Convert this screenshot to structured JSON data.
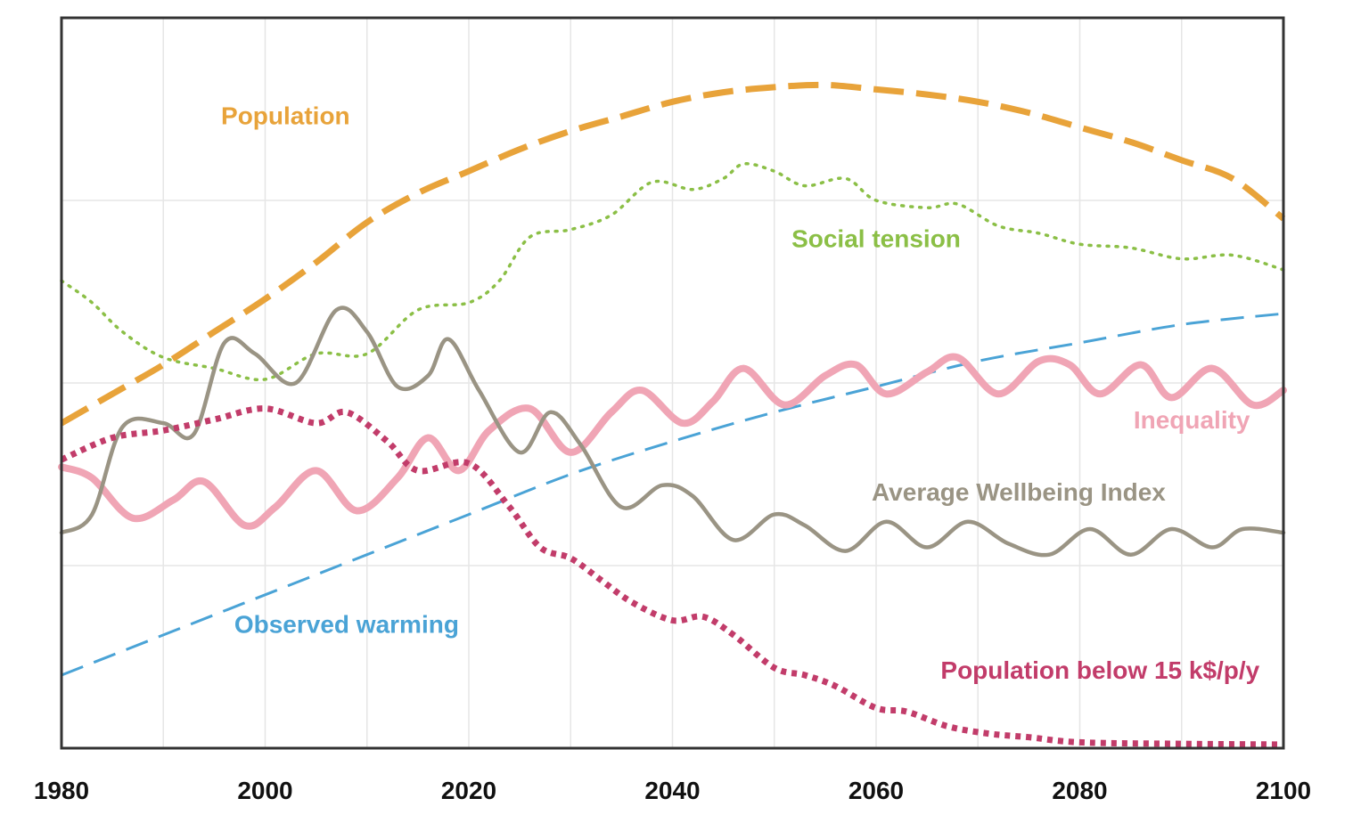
{
  "chart_data": {
    "type": "line",
    "title": "",
    "xlabel": "",
    "ylabel": "",
    "xlim": [
      1980,
      2100
    ],
    "ylim": [
      0,
      100
    ],
    "grid": true,
    "x_ticks": [
      {
        "value": 1980,
        "label": "1980"
      },
      {
        "value": 2000,
        "label": "2000"
      },
      {
        "value": 2020,
        "label": "2020"
      },
      {
        "value": 2040,
        "label": "2040"
      },
      {
        "value": 2060,
        "label": "2060"
      },
      {
        "value": 2080,
        "label": "2080"
      },
      {
        "value": 2100,
        "label": "2100"
      }
    ],
    "series": [
      {
        "name": "Population",
        "label": "Population",
        "color": "#e8a33a",
        "style": "long-dash",
        "label_at": [
          2002,
          85.4
        ],
        "points": [
          [
            1980,
            44.5
          ],
          [
            1985,
            48.5
          ],
          [
            1990,
            52.5
          ],
          [
            1995,
            57
          ],
          [
            2000,
            61.5
          ],
          [
            2005,
            66.5
          ],
          [
            2010,
            72
          ],
          [
            2015,
            76
          ],
          [
            2020,
            79
          ],
          [
            2025,
            82
          ],
          [
            2030,
            84.5
          ],
          [
            2035,
            86.5
          ],
          [
            2040,
            88.5
          ],
          [
            2045,
            89.8
          ],
          [
            2050,
            90.5
          ],
          [
            2055,
            90.8
          ],
          [
            2060,
            90.2
          ],
          [
            2065,
            89.5
          ],
          [
            2070,
            88.5
          ],
          [
            2075,
            87
          ],
          [
            2080,
            85
          ],
          [
            2085,
            83
          ],
          [
            2090,
            80.5
          ],
          [
            2095,
            78
          ],
          [
            2100,
            72.5
          ]
        ]
      },
      {
        "name": "Social tension",
        "label": "Social tension",
        "color": "#8bbf46",
        "style": "dotted",
        "label_at": [
          2060,
          68.6
        ],
        "points": [
          [
            1980,
            64
          ],
          [
            1983,
            61
          ],
          [
            1986,
            57
          ],
          [
            1990,
            53.5
          ],
          [
            1995,
            52
          ],
          [
            2000,
            50.5
          ],
          [
            2005,
            54
          ],
          [
            2010,
            54
          ],
          [
            2015,
            60
          ],
          [
            2020,
            61
          ],
          [
            2023,
            64
          ],
          [
            2026,
            70
          ],
          [
            2030,
            71
          ],
          [
            2034,
            73
          ],
          [
            2038,
            77.5
          ],
          [
            2042,
            76.5
          ],
          [
            2045,
            78
          ],
          [
            2047,
            80
          ],
          [
            2050,
            79
          ],
          [
            2053,
            77
          ],
          [
            2057,
            78
          ],
          [
            2060,
            75
          ],
          [
            2065,
            74
          ],
          [
            2068,
            74.5
          ],
          [
            2072,
            71.5
          ],
          [
            2076,
            70.5
          ],
          [
            2080,
            69
          ],
          [
            2085,
            68.5
          ],
          [
            2090,
            67
          ],
          [
            2095,
            67.5
          ],
          [
            2100,
            65.5
          ]
        ]
      },
      {
        "name": "Observed warming",
        "label": "Observed warming",
        "color": "#4aa3d6",
        "style": "medium-dash",
        "label_at": [
          2008,
          15.8
        ],
        "points": [
          [
            1980,
            10
          ],
          [
            1990,
            15.5
          ],
          [
            2000,
            21
          ],
          [
            2010,
            26.5
          ],
          [
            2020,
            32
          ],
          [
            2030,
            37.5
          ],
          [
            2040,
            42
          ],
          [
            2050,
            46
          ],
          [
            2060,
            49.5
          ],
          [
            2070,
            53
          ],
          [
            2080,
            55.5
          ],
          [
            2090,
            58
          ],
          [
            2100,
            59.5
          ]
        ]
      },
      {
        "name": "Inequality",
        "label": "Inequality",
        "color": "#f0a5b5",
        "style": "solid-thick",
        "label_at": [
          2091,
          43.8
        ],
        "points": [
          [
            1980,
            38.5
          ],
          [
            1983,
            37
          ],
          [
            1987,
            31.5
          ],
          [
            1991,
            34
          ],
          [
            1994,
            36.5
          ],
          [
            1998,
            30.5
          ],
          [
            2001,
            33
          ],
          [
            2005,
            38
          ],
          [
            2009,
            32.5
          ],
          [
            2013,
            37
          ],
          [
            2016,
            42.5
          ],
          [
            2019,
            38
          ],
          [
            2022,
            43.5
          ],
          [
            2026,
            46.5
          ],
          [
            2030,
            40.5
          ],
          [
            2034,
            46
          ],
          [
            2037,
            49
          ],
          [
            2041,
            44.5
          ],
          [
            2044,
            47.5
          ],
          [
            2047,
            52
          ],
          [
            2051,
            47
          ],
          [
            2055,
            51
          ],
          [
            2058,
            52.5
          ],
          [
            2061,
            48.5
          ],
          [
            2065,
            51.5
          ],
          [
            2068,
            53.5
          ],
          [
            2072,
            48.5
          ],
          [
            2076,
            53
          ],
          [
            2079,
            52.5
          ],
          [
            2082,
            48.5
          ],
          [
            2086,
            52.5
          ],
          [
            2089,
            48
          ],
          [
            2093,
            52
          ],
          [
            2097,
            47
          ],
          [
            2100,
            49
          ]
        ]
      },
      {
        "name": "Average Wellbeing Index",
        "label": "Average Wellbeing Index",
        "color": "#9a9484",
        "style": "solid",
        "label_at": [
          2074,
          33.9
        ],
        "points": [
          [
            1980,
            29.5
          ],
          [
            1983,
            32
          ],
          [
            1986,
            44
          ],
          [
            1990,
            44.5
          ],
          [
            1993,
            43
          ],
          [
            1996,
            55.5
          ],
          [
            1999,
            54
          ],
          [
            2003,
            50
          ],
          [
            2007,
            60
          ],
          [
            2010,
            57
          ],
          [
            2013,
            49.5
          ],
          [
            2016,
            51
          ],
          [
            2018,
            56
          ],
          [
            2021,
            49
          ],
          [
            2025,
            40.5
          ],
          [
            2028,
            46
          ],
          [
            2031,
            41.5
          ],
          [
            2035,
            33
          ],
          [
            2039,
            36
          ],
          [
            2042,
            34.5
          ],
          [
            2046,
            28.5
          ],
          [
            2050,
            32
          ],
          [
            2053,
            30.5
          ],
          [
            2057,
            27
          ],
          [
            2061,
            31
          ],
          [
            2065,
            27.5
          ],
          [
            2069,
            31
          ],
          [
            2073,
            28
          ],
          [
            2077,
            26.5
          ],
          [
            2081,
            30
          ],
          [
            2085,
            26.5
          ],
          [
            2089,
            30
          ],
          [
            2093,
            27.5
          ],
          [
            2096,
            30
          ],
          [
            2100,
            29.5
          ]
        ]
      },
      {
        "name": "Population below 15 k$/p/y",
        "label": "Population below 15 k$/p/y",
        "color": "#c23c6a",
        "style": "dotted-thick",
        "label_at": [
          2082,
          9.5
        ],
        "points": [
          [
            1980,
            39.5
          ],
          [
            1985,
            42.5
          ],
          [
            1990,
            43.5
          ],
          [
            1995,
            45
          ],
          [
            2000,
            46.5
          ],
          [
            2005,
            44.5
          ],
          [
            2008,
            46
          ],
          [
            2012,
            42
          ],
          [
            2015,
            38
          ],
          [
            2020,
            39
          ],
          [
            2024,
            33
          ],
          [
            2027,
            27.5
          ],
          [
            2030,
            26
          ],
          [
            2033,
            23
          ],
          [
            2036,
            20
          ],
          [
            2040,
            17.5
          ],
          [
            2043,
            18
          ],
          [
            2046,
            15.5
          ],
          [
            2050,
            11
          ],
          [
            2053,
            10
          ],
          [
            2056,
            8.5
          ],
          [
            2060,
            5.5
          ],
          [
            2063,
            5
          ],
          [
            2067,
            3
          ],
          [
            2071,
            2
          ],
          [
            2075,
            1.5
          ],
          [
            2080,
            0.8
          ],
          [
            2090,
            0.6
          ],
          [
            2100,
            0.5
          ]
        ]
      }
    ]
  }
}
